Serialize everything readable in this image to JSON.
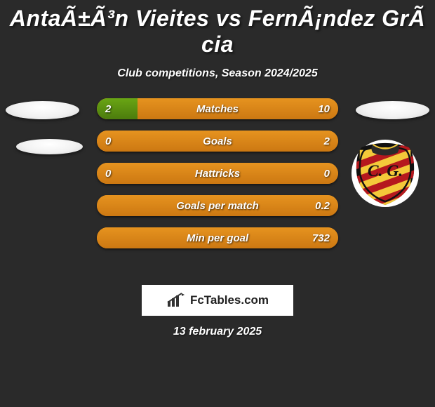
{
  "title": "AntaÃ±Ã³n Vieites vs FernÃ¡ndez GrÃ cia",
  "subtitle": "Club competitions, Season 2024/2025",
  "date": "13 february 2025",
  "logo_text": "FcTables.com",
  "colors": {
    "background": "#2a2a2a",
    "green_top": "#6aa514",
    "green_bottom": "#4c7c0d",
    "orange_top": "#e6931f",
    "orange_bottom": "#cc7812",
    "text": "#ffffff"
  },
  "bars": [
    {
      "label": "Matches",
      "left": "2",
      "right": "10",
      "left_pct": 17,
      "right_pct": 83,
      "left_color": "green",
      "right_color": "orange"
    },
    {
      "label": "Goals",
      "left": "0",
      "right": "2",
      "left_pct": 0,
      "right_pct": 100,
      "left_color": "green",
      "right_color": "orange"
    },
    {
      "label": "Hattricks",
      "left": "0",
      "right": "0",
      "left_pct": 0,
      "right_pct": 100,
      "left_color": "green",
      "right_color": "orange"
    },
    {
      "label": "Goals per match",
      "left": "",
      "right": "0.2",
      "left_pct": 0,
      "right_pct": 100,
      "left_color": "orange",
      "right_color": "orange"
    },
    {
      "label": "Min per goal",
      "left": "",
      "right": "732",
      "left_pct": 0,
      "right_pct": 100,
      "left_color": "orange",
      "right_color": "orange"
    }
  ],
  "club_badge": {
    "outer": "#111111",
    "ring": "#f4c93a",
    "stripe1": "#b5181e",
    "stripe2": "#f4c93a",
    "letters": "C. G."
  }
}
